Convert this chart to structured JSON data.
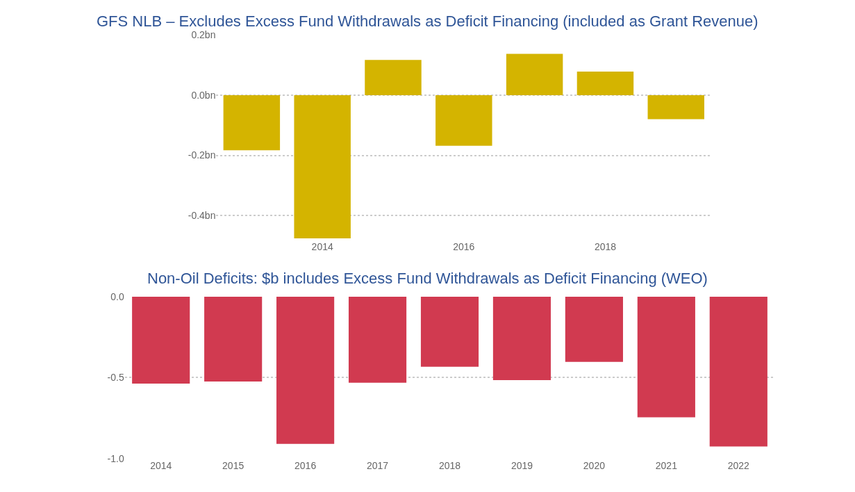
{
  "chart_data": [
    {
      "type": "bar",
      "title": "GFS NLB – Excludes Excess Fund Withdrawals as Deficit Financing (included as Grant Revenue)",
      "x": [
        2013,
        2014,
        2015,
        2016,
        2017,
        2018,
        2019
      ],
      "values": [
        -0.183,
        -0.476,
        0.117,
        -0.168,
        0.137,
        0.078,
        -0.08
      ],
      "color": "#d4b400",
      "xlim": [
        2012.5,
        2019.5
      ],
      "xticks": [
        2014,
        2016,
        2018
      ],
      "ylim": [
        -0.48,
        0.2
      ],
      "yticks": [
        {
          "value": -0.4,
          "label": "-0.4bn"
        },
        {
          "value": -0.2,
          "label": "-0.2bn"
        },
        {
          "value": 0,
          "label": "0.0bn"
        },
        {
          "value": 0.2,
          "label": "0.2bn"
        }
      ],
      "grid": "y",
      "legend": false
    },
    {
      "type": "bar",
      "title": "Non-Oil Deficits: $b includes Excess Fund Withdrawals as Deficit Financing (WEO)",
      "categories": [
        "2014",
        "2015",
        "2016",
        "2017",
        "2018",
        "2019",
        "2020",
        "2021",
        "2022"
      ],
      "values": [
        -0.537,
        -0.524,
        -0.909,
        -0.532,
        -0.433,
        -0.515,
        -0.403,
        -0.745,
        -0.926
      ],
      "color": "#d13a50",
      "ylim": [
        -1,
        0
      ],
      "yticks": [
        {
          "value": -1,
          "label": "-1.0"
        },
        {
          "value": -0.5,
          "label": "-0.5"
        },
        {
          "value": 0,
          "label": "0.0"
        }
      ],
      "grid": "y",
      "legend": false
    }
  ]
}
